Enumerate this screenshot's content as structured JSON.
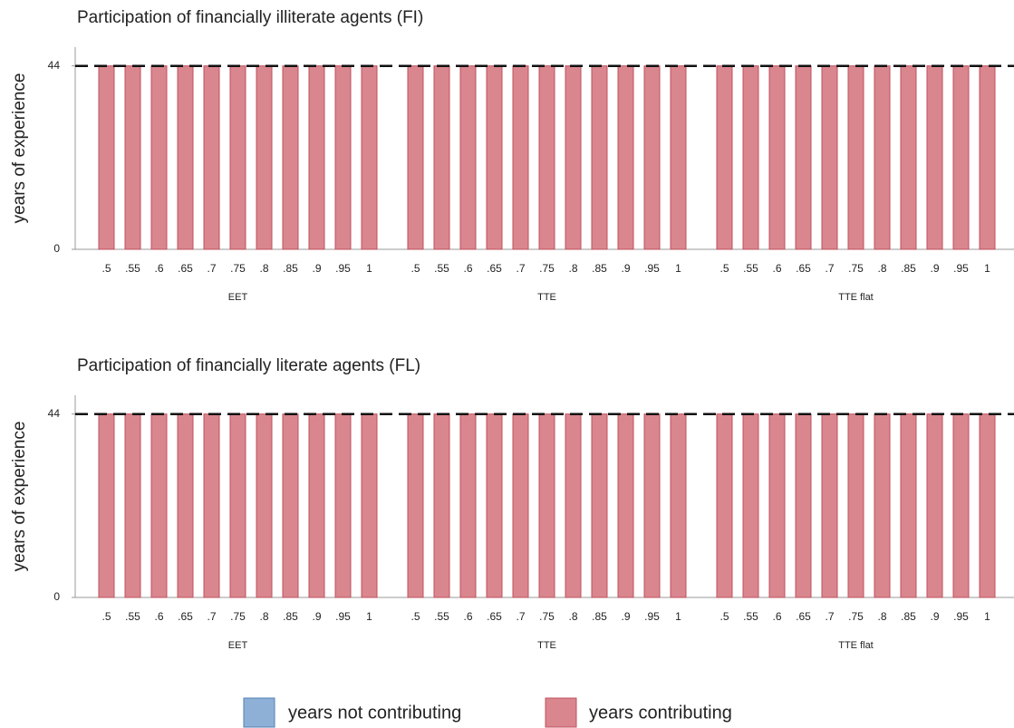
{
  "legend": [
    {
      "name": "years not contributing",
      "color": "#8fb0d6"
    },
    {
      "name": "years contributing",
      "color": "#d9868f"
    }
  ],
  "chart_data": [
    {
      "type": "bar",
      "stacked": true,
      "title": "Participation of financially illiterate agents (FI)",
      "ylabel": "years of experience",
      "groups": [
        "EET",
        "TTE",
        "TTE flat"
      ],
      "categories": [
        ".5",
        ".55",
        ".6",
        ".65",
        ".7",
        ".75",
        ".8",
        ".85",
        ".9",
        ".95",
        "1",
        ".5",
        ".55",
        ".6",
        ".65",
        ".7",
        ".75",
        ".8",
        ".85",
        ".9",
        ".95",
        "1",
        ".5",
        ".55",
        ".6",
        ".65",
        ".7",
        ".75",
        ".8",
        ".85",
        ".9",
        ".95",
        "1"
      ],
      "series": [
        {
          "values": [
            0,
            0,
            0,
            0,
            0,
            0,
            0,
            0,
            0,
            0,
            0,
            0,
            0,
            0,
            0,
            0,
            0,
            0,
            0,
            0,
            0,
            0,
            0,
            0,
            0,
            0,
            0,
            0,
            0,
            0,
            0,
            0,
            0
          ]
        },
        {
          "values": [
            44,
            44,
            44,
            44,
            44,
            44,
            44,
            44,
            44,
            44,
            44,
            44,
            44,
            44,
            44,
            44,
            44,
            44,
            44,
            44,
            44,
            44,
            44,
            44,
            44,
            44,
            44,
            44,
            44,
            44,
            44,
            44,
            44
          ]
        }
      ],
      "ylim": [
        0,
        48.5
      ],
      "yticks": [
        0,
        44
      ],
      "hline": 44
    },
    {
      "type": "bar",
      "stacked": true,
      "title": "Participation of financially literate agents (FL)",
      "ylabel": "years of experience",
      "groups": [
        "EET",
        "TTE",
        "TTE flat"
      ],
      "categories": [
        ".5",
        ".55",
        ".6",
        ".65",
        ".7",
        ".75",
        ".8",
        ".85",
        ".9",
        ".95",
        "1",
        ".5",
        ".55",
        ".6",
        ".65",
        ".7",
        ".75",
        ".8",
        ".85",
        ".9",
        ".95",
        "1",
        ".5",
        ".55",
        ".6",
        ".65",
        ".7",
        ".75",
        ".8",
        ".85",
        ".9",
        ".95",
        "1"
      ],
      "series": [
        {
          "values": [
            0,
            0,
            0,
            0,
            0,
            0,
            0,
            0,
            0,
            0,
            0,
            0,
            0,
            0,
            0,
            0,
            0,
            0,
            0,
            0,
            0,
            0,
            0,
            0,
            0,
            0,
            0,
            0,
            0,
            0,
            0,
            0,
            0
          ]
        },
        {
          "values": [
            44,
            44,
            44,
            44,
            44,
            44,
            44,
            44,
            44,
            44,
            44,
            44,
            44,
            44,
            44,
            44,
            44,
            44,
            44,
            44,
            44,
            44,
            44,
            44,
            44,
            44,
            44,
            44,
            44,
            44,
            44,
            44,
            44
          ]
        }
      ],
      "ylim": [
        0,
        48.5
      ],
      "yticks": [
        0,
        44
      ],
      "hline": 44
    }
  ]
}
